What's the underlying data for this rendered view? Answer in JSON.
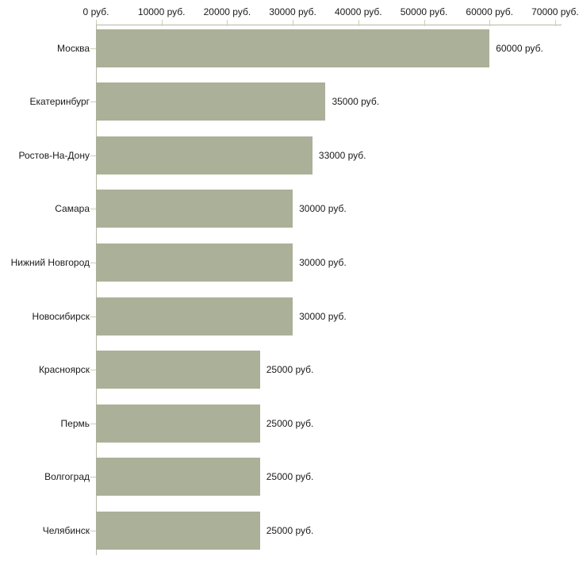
{
  "chart_data": {
    "type": "bar",
    "orientation": "horizontal",
    "title": "",
    "xlabel": "",
    "ylabel": "",
    "categories": [
      "Москва",
      "Екатеринбург",
      "Ростов-На-Дону",
      "Самара",
      "Нижний Новгород",
      "Новосибирск",
      "Красноярск",
      "Пермь",
      "Волгоград",
      "Челябинск"
    ],
    "values": [
      60000,
      35000,
      33000,
      30000,
      30000,
      30000,
      25000,
      25000,
      25000,
      25000
    ],
    "value_labels": [
      "60000 руб.",
      "35000 руб.",
      "33000 руб.",
      "30000 руб.",
      "30000 руб.",
      "30000 руб.",
      "25000 руб.",
      "25000 руб.",
      "25000 руб.",
      "25000 руб."
    ],
    "x_ticks": [
      0,
      10000,
      20000,
      30000,
      40000,
      50000,
      60000,
      70000
    ],
    "x_tick_labels": [
      "0 руб.",
      "10000 руб.",
      "20000 руб.",
      "30000 руб.",
      "40000 руб.",
      "50000 руб.",
      "60000 руб.",
      "70000 руб."
    ],
    "xlim": [
      0,
      70000
    ],
    "grid": false,
    "legend": null,
    "colors": {
      "bar_fill": "#abb098",
      "axis_line": "#b7b8a5",
      "tick_mark": "#cdceb2",
      "text": "#1a1a1a",
      "background": "#ffffff"
    }
  }
}
